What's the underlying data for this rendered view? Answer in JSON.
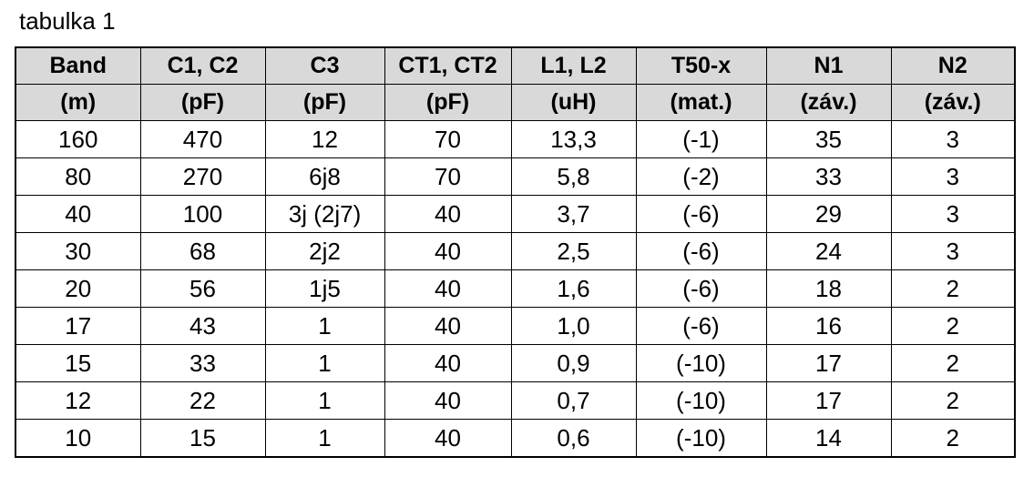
{
  "title": "tabulka 1",
  "table": {
    "columns": [
      {
        "name": "Band",
        "unit": "(m)"
      },
      {
        "name": "C1, C2",
        "unit": "(pF)"
      },
      {
        "name": "C3",
        "unit": "(pF)"
      },
      {
        "name": "CT1, CT2",
        "unit": "(pF)"
      },
      {
        "name": "L1, L2",
        "unit": "(uH)"
      },
      {
        "name": "T50-x",
        "unit": "(mat.)"
      },
      {
        "name": "N1",
        "unit": "(záv.)"
      },
      {
        "name": "N2",
        "unit": "(záv.)"
      }
    ],
    "rows": [
      [
        "160",
        "470",
        "12",
        "70",
        "13,3",
        "(-1)",
        "35",
        "3"
      ],
      [
        "80",
        "270",
        "6j8",
        "70",
        "5,8",
        "(-2)",
        "33",
        "3"
      ],
      [
        "40",
        "100",
        "3j (2j7)",
        "40",
        "3,7",
        "(-6)",
        "29",
        "3"
      ],
      [
        "30",
        "68",
        "2j2",
        "40",
        "2,5",
        "(-6)",
        "24",
        "3"
      ],
      [
        "20",
        "56",
        "1j5",
        "40",
        "1,6",
        "(-6)",
        "18",
        "2"
      ],
      [
        "17",
        "43",
        "1",
        "40",
        "1,0",
        "(-6)",
        "16",
        "2"
      ],
      [
        "15",
        "33",
        "1",
        "40",
        "0,9",
        "(-10)",
        "17",
        "2"
      ],
      [
        "12",
        "22",
        "1",
        "40",
        "0,7",
        "(-10)",
        "17",
        "2"
      ],
      [
        "10",
        "15",
        "1",
        "40",
        "0,6",
        "(-10)",
        "14",
        "2"
      ]
    ]
  },
  "colors": {
    "header_bg": "#d9d9d9",
    "border": "#000000",
    "text": "#000000",
    "page_bg": "#ffffff"
  }
}
